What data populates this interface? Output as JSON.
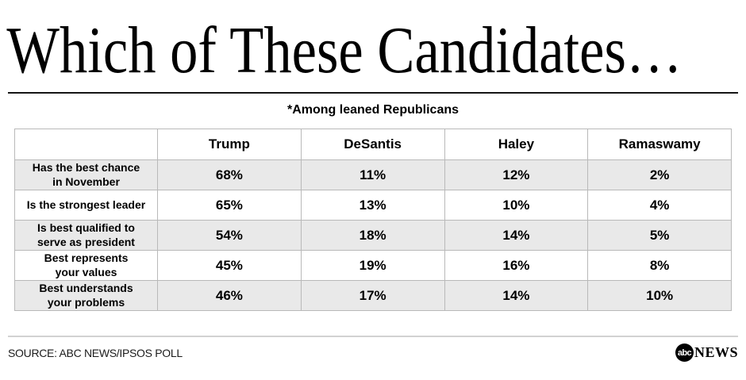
{
  "header": {
    "title": "Which of These Candidates…",
    "subtitle": "*Among leaned Republicans"
  },
  "chart_data": {
    "type": "table",
    "title": "Which of These Candidates…",
    "note": "*Among leaned Republicans",
    "columns": [
      "",
      "Trump",
      "DeSantis",
      "Haley",
      "Ramaswamy"
    ],
    "rows": [
      {
        "label": "Has the best chance\nin November",
        "values": [
          "68%",
          "11%",
          "12%",
          "2%"
        ]
      },
      {
        "label": "Is the strongest leader",
        "values": [
          "65%",
          "13%",
          "10%",
          "4%"
        ]
      },
      {
        "label": "Is best qualified to\nserve as president",
        "values": [
          "54%",
          "18%",
          "14%",
          "5%"
        ]
      },
      {
        "label": "Best represents\nyour values",
        "values": [
          "45%",
          "19%",
          "16%",
          "8%"
        ]
      },
      {
        "label": "Best understands\nyour problems",
        "values": [
          "46%",
          "17%",
          "14%",
          "10%"
        ]
      }
    ],
    "series": [
      {
        "name": "Trump",
        "values": [
          68,
          65,
          54,
          45,
          46
        ]
      },
      {
        "name": "DeSantis",
        "values": [
          11,
          13,
          18,
          19,
          17
        ]
      },
      {
        "name": "Haley",
        "values": [
          12,
          10,
          14,
          16,
          14
        ]
      },
      {
        "name": "Ramaswamy",
        "values": [
          2,
          4,
          5,
          8,
          10
        ]
      }
    ],
    "unit": "%"
  },
  "footer": {
    "source": "SOURCE: ABC NEWS/IPSOS POLL",
    "logo": {
      "abc": "abc",
      "news": "NEWS"
    }
  },
  "colors": {
    "background": "#ffffff",
    "text": "#000000",
    "shaded_row": "#e9e9e9",
    "table_border": "#b9b9b9",
    "title_rule": "#151515",
    "footer_rule": "#d2d2d2",
    "logo_bg": "#000000",
    "logo_text": "#ffffff"
  }
}
